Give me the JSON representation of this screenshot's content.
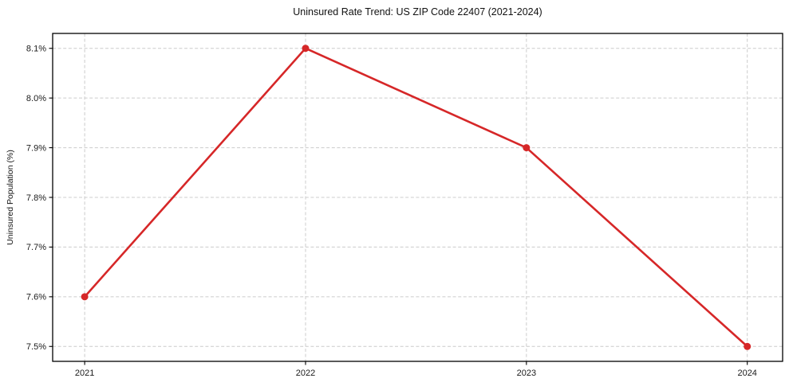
{
  "chart_data": {
    "type": "line",
    "title": "Uninsured Rate Trend: US ZIP Code 22407 (2021-2024)",
    "xlabel": "",
    "ylabel": "Uninsured Population (%)",
    "x": [
      2021,
      2022,
      2023,
      2024
    ],
    "values": [
      7.6,
      8.1,
      7.9,
      7.5
    ],
    "xtick_labels": [
      "2021",
      "2022",
      "2023",
      "2024"
    ],
    "yticks": [
      7.5,
      7.6,
      7.7,
      7.8,
      7.9,
      8.0,
      8.1
    ],
    "ytick_labels": [
      "7.5%",
      "7.6%",
      "7.7%",
      "7.8%",
      "7.9%",
      "8.0%",
      "8.1%"
    ],
    "xlim": [
      2020.855,
      2024.16
    ],
    "ylim": [
      7.47,
      8.13
    ],
    "grid": true,
    "legend": "none",
    "line_color": "#d62728",
    "marker": "circle",
    "grid_color": "#cccccc",
    "axis_color": "#000000",
    "tick_label_color": "#1a1a1a"
  }
}
